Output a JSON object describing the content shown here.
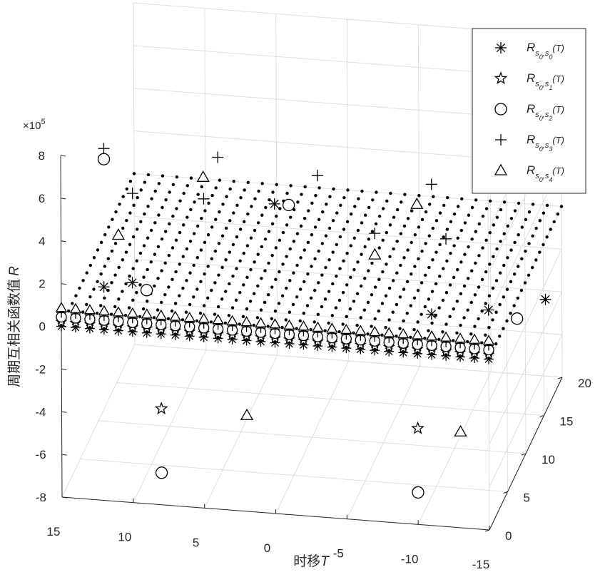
{
  "chart_data": {
    "type": "scatter3d",
    "title": "",
    "xlabel": "时移",
    "xlabel_var": "T",
    "ylabel": "",
    "zlabel": "周期互相关函数值",
    "zlabel_var": "R",
    "exponent": {
      "base": "×10",
      "power": "5"
    },
    "xlim": [
      -15,
      15
    ],
    "ylim": [
      0,
      20
    ],
    "zlim": [
      -800000,
      800000
    ],
    "x_ticks": [
      15,
      10,
      5,
      0,
      -5,
      -10,
      -15
    ],
    "y_ticks": [
      0,
      5,
      10,
      15,
      20
    ],
    "z_ticks": [
      8,
      6,
      4,
      2,
      0,
      -2,
      -4,
      -6,
      -8
    ],
    "grid": true,
    "legend_position": "top-right",
    "colors": {
      "markers": "#000000",
      "axes": "#262626",
      "grid": "#dedede"
    },
    "series": [
      {
        "name": "R_{s0,s0}(T)",
        "marker": "asterisk",
        "sub": "0",
        "peaks": [
          [
            0,
            0,
            650000
          ],
          [
            12,
            0,
            200000
          ],
          [
            -11,
            0,
            190000
          ],
          [
            10,
            0,
            230000
          ],
          [
            -15,
            0,
            230000
          ],
          [
            -19,
            0,
            300000
          ]
        ]
      },
      {
        "name": "R_{s0,s1}(T)",
        "marker": "star",
        "sub": "1",
        "peaks": [
          [
            8,
            0,
            -350000
          ],
          [
            -10,
            0,
            -350000
          ]
        ]
      },
      {
        "name": "R_{s0,s2}(T)",
        "marker": "circle",
        "sub": "2",
        "peaks": [
          [
            13,
            4,
            650000
          ],
          [
            -1,
            0,
            650000
          ],
          [
            9,
            0,
            200000
          ],
          [
            -17,
            0,
            200000
          ],
          [
            8,
            0,
            -650000
          ],
          [
            -10,
            0,
            -650000
          ]
        ]
      },
      {
        "name": "R_{s0,s3}(T)",
        "marker": "plus",
        "sub": "3",
        "peaks": [
          [
            13,
            4,
            700000
          ],
          [
            5,
            4,
            700000
          ],
          [
            -2,
            4,
            650000
          ],
          [
            -10,
            4,
            650000
          ],
          [
            11,
            4,
            500000
          ],
          [
            6,
            4,
            500000
          ],
          [
            -6,
            4,
            400000
          ],
          [
            -11,
            4,
            400000
          ]
        ]
      },
      {
        "name": "R_{s0,s4}(T)",
        "marker": "triangle",
        "sub": "4",
        "peaks": [
          [
            5,
            0,
            750000
          ],
          [
            -10,
            0,
            700000
          ],
          [
            12,
            4,
            300000
          ],
          [
            -6,
            4,
            300000
          ],
          [
            2,
            0,
            -350000
          ],
          [
            -13,
            0,
            -350000
          ]
        ]
      }
    ]
  }
}
